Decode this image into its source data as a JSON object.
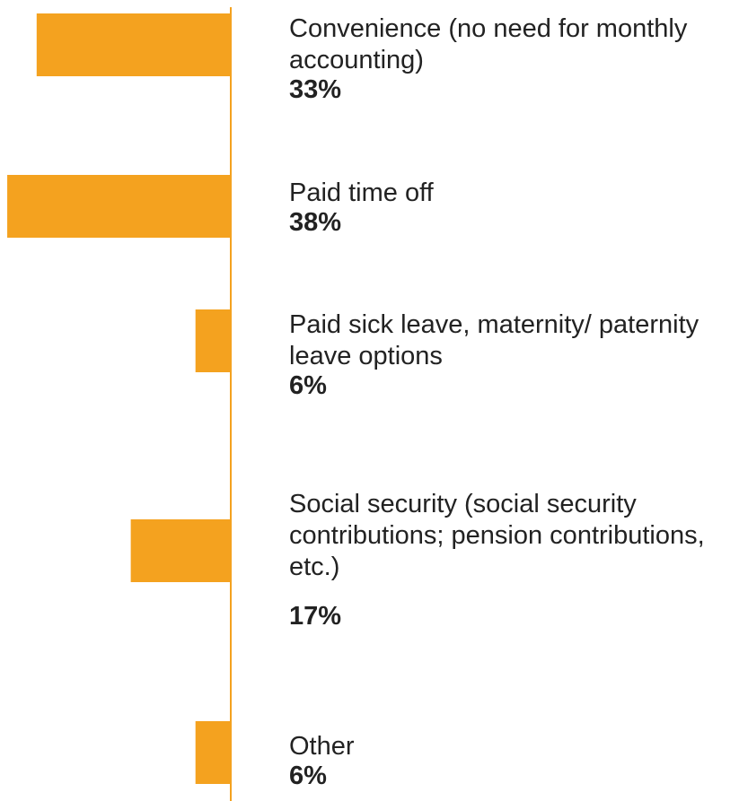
{
  "chart_data": {
    "type": "bar",
    "orientation": "horizontal",
    "categories": [
      "Convenience (no need for monthly accounting)",
      "Paid time off",
      "Paid sick leave, maternity/ paternity leave options",
      "Social security (social security contributions; pension contributions, etc.)",
      "Other"
    ],
    "values": [
      33,
      38,
      6,
      17,
      6
    ],
    "value_labels": [
      "33%",
      "38%",
      "6%",
      "17%",
      "6%"
    ],
    "color": "#f4a21f",
    "xlim": [
      0,
      39
    ]
  }
}
